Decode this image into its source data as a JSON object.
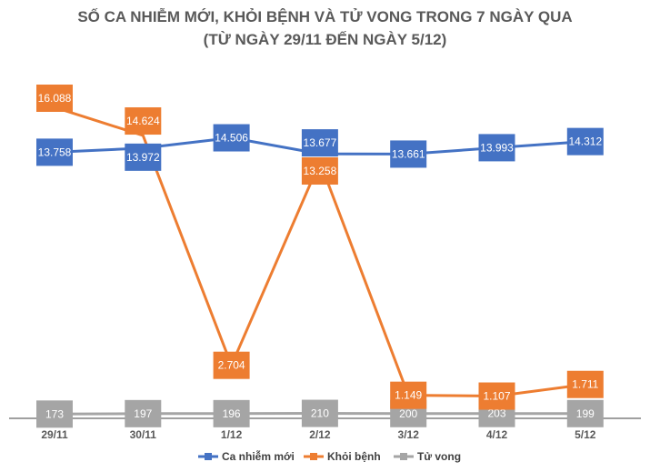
{
  "chart_data": {
    "type": "line",
    "title": "SỐ CA NHIỄM MỚI, KHỎI BỆNH VÀ TỬ VONG TRONG 7 NGÀY QUA",
    "subtitle": "(TỪ NGÀY 29/11 ĐẾN NGÀY 5/12)",
    "categories": [
      "29/11",
      "30/11",
      "1/12",
      "2/12",
      "3/12",
      "4/12",
      "5/12"
    ],
    "series": [
      {
        "name": "Ca nhiễm mới",
        "color": "#4472C4",
        "values": [
          13758,
          13972,
          14506,
          13677,
          13661,
          13993,
          14312
        ],
        "labels": [
          "13.758",
          "13.972",
          "14.506",
          "13.677",
          "13.661",
          "13.993",
          "14.312"
        ]
      },
      {
        "name": "Khỏi bệnh",
        "color": "#ED7D31",
        "values": [
          16088,
          14624,
          2704,
          13258,
          1149,
          1107,
          1711
        ],
        "labels": [
          "16.088",
          "14.624",
          "2.704",
          "13.258",
          "1.149",
          "1.107",
          "1.711"
        ]
      },
      {
        "name": "Tử vong",
        "color": "#A5A5A5",
        "values": [
          173,
          197,
          196,
          210,
          200,
          203,
          199
        ],
        "labels": [
          "173",
          "197",
          "196",
          "210",
          "200",
          "203",
          "199"
        ]
      }
    ],
    "ylim": [
      0,
      17500
    ],
    "grid": false,
    "legend": "bottom"
  }
}
